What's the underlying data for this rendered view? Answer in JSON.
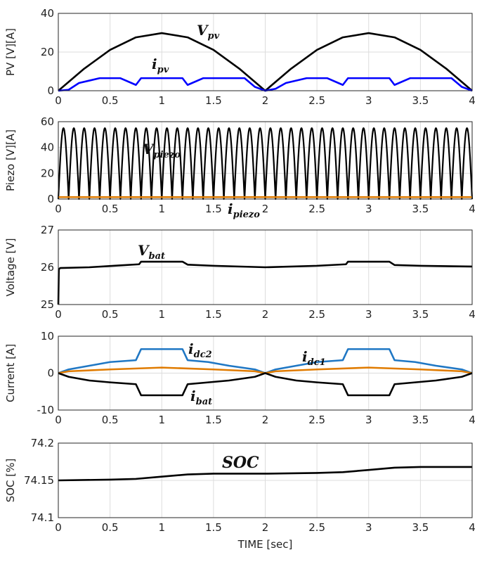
{
  "chart_data": [
    {
      "type": "line",
      "ylabel": "PV [V][A]",
      "ylim": [
        0,
        40
      ],
      "xlim": [
        0,
        4
      ],
      "yticks": [
        "0",
        "20",
        "40"
      ],
      "xticks": [
        "0",
        "0.5",
        "1",
        "1.5",
        "2",
        "2.5",
        "3",
        "3.5",
        "4"
      ],
      "grid": true,
      "series": [
        {
          "label_main": "V",
          "label_sub": "pv",
          "color": "#000000",
          "x": [
            0,
            0.25,
            0.5,
            0.75,
            1,
            1.25,
            1.5,
            1.75,
            2,
            2.25,
            2.5,
            2.75,
            3,
            3.25,
            3.5,
            3.75,
            4
          ],
          "y": [
            0,
            11.4,
            21.1,
            27.6,
            29.8,
            27.6,
            21.1,
            11.4,
            0,
            11.4,
            21.1,
            27.6,
            29.8,
            27.6,
            21.1,
            11.4,
            0
          ]
        },
        {
          "label_main": "i",
          "label_sub": "pv",
          "color": "#0000ff",
          "x": [
            0,
            0.1,
            0.2,
            0.4,
            0.6,
            0.75,
            0.8,
            1.0,
            1.2,
            1.25,
            1.4,
            1.6,
            1.8,
            1.9,
            2.0,
            2.1,
            2.2,
            2.4,
            2.6,
            2.75,
            2.8,
            3.0,
            3.2,
            3.25,
            3.4,
            3.6,
            3.8,
            3.9,
            4.0
          ],
          "y": [
            0,
            0.5,
            4.0,
            6.5,
            6.5,
            3.0,
            6.5,
            6.5,
            6.5,
            3.0,
            6.5,
            6.5,
            6.5,
            2.0,
            0,
            1.0,
            4.0,
            6.5,
            6.5,
            3.0,
            6.5,
            6.5,
            6.5,
            3.0,
            6.5,
            6.5,
            6.5,
            2.0,
            0
          ]
        }
      ]
    },
    {
      "type": "line",
      "ylabel": "Piezo [V][A]",
      "ylim": [
        0,
        60
      ],
      "xlim": [
        0,
        4
      ],
      "yticks": [
        "0",
        "20",
        "40",
        "60"
      ],
      "xticks": [
        "0",
        "0.5",
        "1",
        "1.5",
        "2",
        "2.5",
        "3",
        "3.5",
        "4"
      ],
      "grid": true,
      "series": [
        {
          "label_main": "V",
          "label_sub": "piezo",
          "color": "#000000",
          "form": "rectified-sine",
          "amplitude": 55,
          "cycles_per_unit": 10,
          "x": [
            0,
            4
          ]
        },
        {
          "label_main": "i",
          "label_sub": "piezo",
          "color": "#e07b00",
          "x": [
            0,
            4
          ],
          "y": [
            1.5,
            1.5
          ]
        }
      ]
    },
    {
      "type": "line",
      "ylabel": "Voltage [V]",
      "ylim": [
        25,
        27
      ],
      "xlim": [
        0,
        4
      ],
      "yticks": [
        "25",
        "26",
        "27"
      ],
      "xticks": [
        "0",
        "0.5",
        "1",
        "1.5",
        "2",
        "2.5",
        "3",
        "3.5",
        "4"
      ],
      "grid": true,
      "series": [
        {
          "label_main": "V",
          "label_sub": "bat",
          "color": "#000000",
          "x": [
            0,
            0.005,
            0.02,
            0.3,
            0.6,
            0.78,
            0.8,
            1.2,
            1.25,
            1.5,
            2.0,
            2.5,
            2.78,
            2.8,
            3.2,
            3.25,
            3.5,
            4.0
          ],
          "y": [
            25.0,
            25.95,
            25.98,
            26.0,
            26.05,
            26.08,
            26.15,
            26.15,
            26.07,
            26.04,
            26.0,
            26.04,
            26.08,
            26.15,
            26.15,
            26.06,
            26.04,
            26.02
          ]
        }
      ]
    },
    {
      "type": "line",
      "ylabel": "Current [A]",
      "ylim": [
        -10,
        10
      ],
      "xlim": [
        0,
        4
      ],
      "yticks": [
        "-10",
        "0",
        "10"
      ],
      "xticks": [
        "0",
        "0.5",
        "1",
        "1.5",
        "2",
        "2.5",
        "3",
        "3.5",
        "4"
      ],
      "grid": true,
      "series": [
        {
          "label_main": "i",
          "label_sub": "dc2",
          "color": "#1f77c4",
          "x": [
            0,
            0.1,
            0.3,
            0.5,
            0.75,
            0.8,
            1.0,
            1.2,
            1.25,
            1.45,
            1.65,
            1.9,
            2.0,
            2.1,
            2.3,
            2.5,
            2.75,
            2.8,
            3.0,
            3.2,
            3.25,
            3.45,
            3.65,
            3.9,
            4.0
          ],
          "y": [
            0,
            1.0,
            2.0,
            3.0,
            3.5,
            6.5,
            6.5,
            6.5,
            3.5,
            3.0,
            2.0,
            1.0,
            0,
            1.0,
            2.0,
            3.0,
            3.5,
            6.5,
            6.5,
            6.5,
            3.5,
            3.0,
            2.0,
            1.0,
            0
          ]
        },
        {
          "label_main": "i",
          "label_sub": "dc1",
          "color": "#e07b00",
          "x": [
            0,
            0.1,
            0.5,
            1.0,
            1.5,
            1.9,
            2.0,
            2.1,
            2.5,
            3.0,
            3.5,
            3.9,
            4.0
          ],
          "y": [
            0,
            0.5,
            1.0,
            1.5,
            1.0,
            0.5,
            0,
            0.5,
            1.0,
            1.5,
            1.0,
            0.5,
            0
          ]
        },
        {
          "label_main": "i",
          "label_sub": "bat",
          "color": "#000000",
          "x": [
            0,
            0.1,
            0.3,
            0.5,
            0.75,
            0.8,
            1.0,
            1.2,
            1.25,
            1.45,
            1.65,
            1.9,
            2.0,
            2.1,
            2.3,
            2.5,
            2.75,
            2.8,
            3.0,
            3.2,
            3.25,
            3.45,
            3.65,
            3.9,
            4.0
          ],
          "y": [
            0,
            -1.0,
            -2.0,
            -2.5,
            -3.0,
            -6.0,
            -6.0,
            -6.0,
            -3.0,
            -2.5,
            -2.0,
            -1.0,
            0,
            -1.0,
            -2.0,
            -2.5,
            -3.0,
            -6.0,
            -6.0,
            -6.0,
            -3.0,
            -2.5,
            -2.0,
            -1.0,
            0
          ]
        }
      ]
    },
    {
      "type": "line",
      "ylabel": "SOC [%]",
      "xlabel": "TIME [sec]",
      "ylim": [
        74.1,
        74.2
      ],
      "xlim": [
        0,
        4
      ],
      "yticks": [
        "74.1",
        "74.15",
        "74.2"
      ],
      "xticks": [
        "0",
        "0.5",
        "1",
        "1.5",
        "2",
        "2.5",
        "3",
        "3.5",
        "4"
      ],
      "grid": true,
      "series": [
        {
          "label_main": "SOC",
          "label_sub": "",
          "color": "#000000",
          "x": [
            0,
            0.5,
            0.75,
            1.0,
            1.25,
            1.5,
            2.0,
            2.5,
            2.75,
            3.0,
            3.25,
            3.5,
            4.0
          ],
          "y": [
            74.15,
            74.151,
            74.152,
            74.155,
            74.158,
            74.159,
            74.159,
            74.16,
            74.161,
            74.164,
            74.167,
            74.168,
            74.168
          ]
        }
      ]
    }
  ]
}
